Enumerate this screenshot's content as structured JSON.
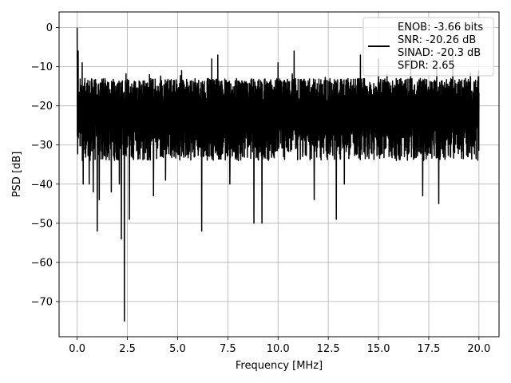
{
  "chart_data": {
    "type": "line",
    "title": "",
    "xlabel": "Frequency [MHz]",
    "ylabel": "PSD [dB]",
    "xlim": [
      -0.9,
      21.0
    ],
    "ylim": [
      -79.0,
      4.0
    ],
    "xticks": [
      0.0,
      2.5,
      5.0,
      7.5,
      10.0,
      12.5,
      15.0,
      17.5,
      20.0
    ],
    "xtick_labels": [
      "0.0",
      "2.5",
      "5.0",
      "7.5",
      "10.0",
      "12.5",
      "15.0",
      "17.5",
      "20.0"
    ],
    "yticks": [
      0,
      -10,
      -20,
      -30,
      -40,
      -50,
      -60,
      -70
    ],
    "ytick_labels": [
      "0",
      "−10",
      "−20",
      "−30",
      "−40",
      "−50",
      "−60",
      "−70"
    ],
    "grid": true,
    "legend_position": "top-right",
    "legend_lines": [
      "ENOB: -3.66 bits",
      "SNR: -20.26 dB",
      "SINAD: -20.3 dB",
      "SFDR: 2.65"
    ],
    "series_color": "#000000",
    "series": [
      {
        "name": "ENOB: -3.66 bits\nSNR: -20.26 dB\nSINAD: -20.3 dB\nSFDR: 2.65",
        "envelope": {
          "x_range": [
            0.0,
            20.0
          ],
          "typical_upper": -14,
          "typical_lower": -30,
          "mean": -21
        },
        "peaks": [
          {
            "x": 0.0,
            "y": 0.0
          },
          {
            "x": 0.05,
            "y": -6
          },
          {
            "x": 0.25,
            "y": -9
          },
          {
            "x": 3.6,
            "y": -12
          },
          {
            "x": 5.2,
            "y": -11
          },
          {
            "x": 6.7,
            "y": -8
          },
          {
            "x": 7.0,
            "y": -7
          },
          {
            "x": 10.0,
            "y": -9
          },
          {
            "x": 10.8,
            "y": -6
          },
          {
            "x": 14.1,
            "y": -7
          },
          {
            "x": 15.0,
            "y": -8
          },
          {
            "x": 16.6,
            "y": -8
          },
          {
            "x": 17.9,
            "y": -9
          },
          {
            "x": 18.7,
            "y": -7
          }
        ],
        "dips": [
          {
            "x": 0.3,
            "y": -40
          },
          {
            "x": 0.6,
            "y": -40
          },
          {
            "x": 0.8,
            "y": -42
          },
          {
            "x": 1.0,
            "y": -52
          },
          {
            "x": 1.1,
            "y": -44
          },
          {
            "x": 1.7,
            "y": -42
          },
          {
            "x": 2.1,
            "y": -40
          },
          {
            "x": 2.2,
            "y": -54
          },
          {
            "x": 2.35,
            "y": -75
          },
          {
            "x": 2.6,
            "y": -49
          },
          {
            "x": 3.8,
            "y": -43
          },
          {
            "x": 4.4,
            "y": -39
          },
          {
            "x": 6.2,
            "y": -52
          },
          {
            "x": 7.6,
            "y": -40
          },
          {
            "x": 8.8,
            "y": -50
          },
          {
            "x": 9.2,
            "y": -50
          },
          {
            "x": 11.8,
            "y": -44
          },
          {
            "x": 12.9,
            "y": -49
          },
          {
            "x": 13.3,
            "y": -40
          },
          {
            "x": 17.2,
            "y": -43
          },
          {
            "x": 18.0,
            "y": -45
          }
        ]
      }
    ]
  }
}
